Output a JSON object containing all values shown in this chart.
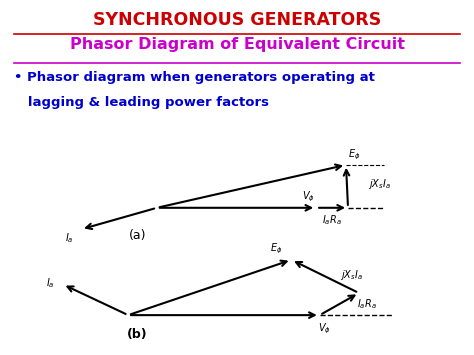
{
  "title1": "SYNCHRONOUS GENERATORS",
  "title2": "Phasor Diagram of Equivalent Circuit",
  "bullet_line1": "• Phasor diagram when generators operating at",
  "bullet_line2": "   lagging & leading power factors",
  "bg_color": "#FFFFFF",
  "title1_color": "#CC0000",
  "title2_color": "#CC00CC",
  "bullet_color": "#0000CC",
  "diagram_a_label": "(a)",
  "diagram_b_label": "(b)"
}
